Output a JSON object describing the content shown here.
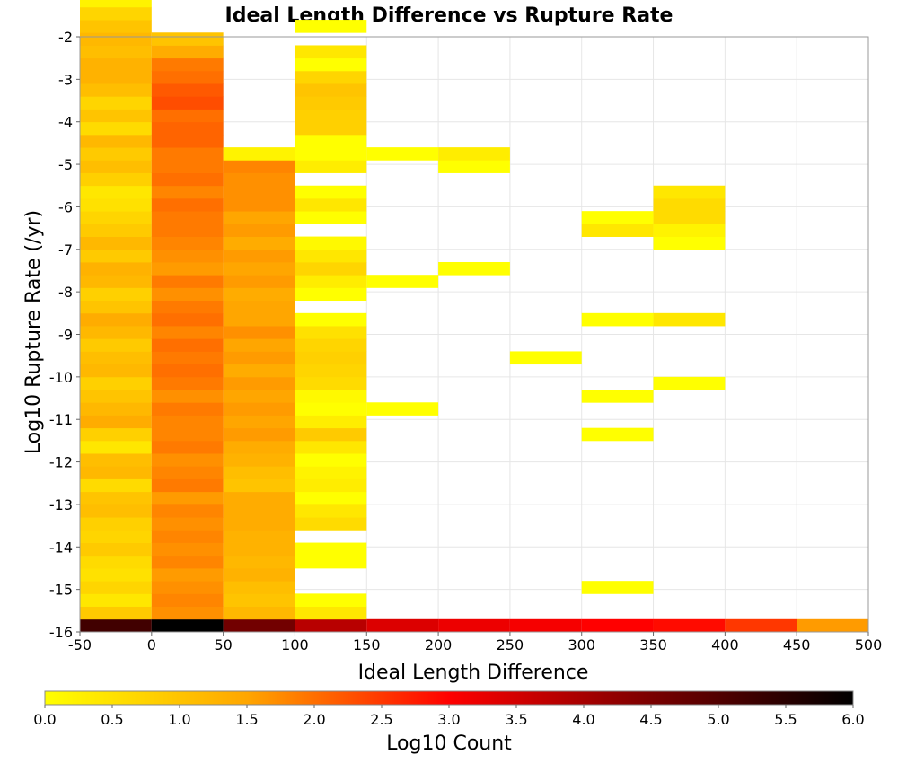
{
  "chart_data": {
    "type": "heatmap",
    "title": "Ideal Length Difference vs Rupture Rate",
    "xlabel": "Ideal Length Difference",
    "ylabel": "Log10 Rupture Rate (/yr)",
    "xlim": [
      -50,
      500
    ],
    "ylim": [
      -16,
      -2
    ],
    "x_ticks": [
      "-50",
      "0",
      "50",
      "100",
      "150",
      "200",
      "250",
      "300",
      "350",
      "400",
      "450",
      "500"
    ],
    "y_ticks": [
      "-2",
      "-3",
      "-4",
      "-5",
      "-6",
      "-7",
      "-8",
      "-9",
      "-10",
      "-11",
      "-12",
      "-13",
      "-14",
      "-15",
      "-16"
    ],
    "x_bin_width": 50,
    "y_bin_height": 0.3,
    "grid": true,
    "colorbar": {
      "label": "Log10 Count",
      "min": 0,
      "max": 6,
      "ticks": [
        "0.0",
        "0.5",
        "1.0",
        "1.5",
        "2.0",
        "2.5",
        "3.0",
        "3.5",
        "4.0",
        "4.5",
        "5.0",
        "5.5",
        "6.0"
      ],
      "colors": [
        "#ffff00",
        "#ffa600",
        "#ff0000",
        "#7a0000",
        "#000000"
      ]
    },
    "columns": [
      {
        "x0": -50,
        "y_start": -16.0,
        "values": [
          5.2,
          0.9,
          0.4,
          0.7,
          0.5,
          0.6,
          0.9,
          0.7,
          0.8,
          1.1,
          1.0,
          0.6,
          1.2,
          1.1,
          0.4,
          0.8,
          1.4,
          1.2,
          1.0,
          0.8,
          1.2,
          1.1,
          0.9,
          1.2,
          1.4,
          1.0,
          0.8,
          1.2,
          1.3,
          0.9,
          1.2,
          0.9,
          0.7,
          0.5,
          0.4,
          0.8,
          1.1,
          0.9,
          1.2,
          0.6,
          1.0,
          0.7,
          1.1,
          1.3,
          1.3,
          1.1,
          1.2,
          1.0,
          0.7,
          0.2,
          0.0
        ]
      },
      {
        "x0": 0,
        "y_start": -16.0,
        "values": [
          6.0,
          1.7,
          1.8,
          1.7,
          1.6,
          1.8,
          1.7,
          1.8,
          1.7,
          1.8,
          1.6,
          1.9,
          1.8,
          1.7,
          1.9,
          1.8,
          1.8,
          1.9,
          1.7,
          1.9,
          2.0,
          1.9,
          2.0,
          1.8,
          2.0,
          1.9,
          1.7,
          1.9,
          1.6,
          1.7,
          1.8,
          1.9,
          1.9,
          2.0,
          1.8,
          2.0,
          1.9,
          1.9,
          2.1,
          2.1,
          2.0,
          2.3,
          2.2,
          2.0,
          1.9,
          1.4,
          1.0
        ]
      },
      {
        "x0": 50,
        "y_start": -16.0,
        "values": [
          4.6,
          1.2,
          1.0,
          1.1,
          1.3,
          1.2,
          1.3,
          1.3,
          1.4,
          1.4,
          1.4,
          1.0,
          1.1,
          1.3,
          1.4,
          1.6,
          1.5,
          1.6,
          1.5,
          1.6,
          1.4,
          1.6,
          1.5,
          1.7,
          1.5,
          1.5,
          1.4,
          1.6,
          1.5,
          1.6,
          1.4,
          1.6,
          1.5,
          1.7,
          1.7,
          1.7,
          1.8,
          0.2
        ]
      },
      {
        "x0": 100,
        "y_start": -16.0,
        "values": [
          3.8,
          0.4,
          0.0,
          null,
          null,
          0.0,
          0.0,
          null,
          0.6,
          0.4,
          0.0,
          0.3,
          0.2,
          0.0,
          0.4,
          0.9,
          0.3,
          0.0,
          0.1,
          0.6,
          0.7,
          0.8,
          0.7,
          0.5,
          0.0,
          null,
          0.0,
          0.3,
          0.7,
          0.4,
          0.1,
          null,
          0.0,
          0.4,
          0.0,
          null,
          0.3,
          0.0,
          0.0,
          0.8,
          0.8,
          0.9,
          1.0,
          0.7,
          0.0,
          0.4,
          null,
          0.0
        ]
      },
      {
        "x0": 150,
        "y_start": -16.0,
        "values": [
          3.4,
          null,
          null,
          null,
          null,
          null,
          null,
          null,
          null,
          null,
          null,
          null,
          null,
          null,
          null,
          null,
          null,
          0.0,
          null,
          null,
          null,
          null,
          null,
          null,
          null,
          null,
          null,
          0.0,
          null,
          null,
          null,
          null,
          null,
          null,
          null,
          null,
          null,
          0.0
        ]
      },
      {
        "x0": 200,
        "y_start": -16.0,
        "values": [
          3.2,
          null,
          null,
          null,
          null,
          null,
          null,
          null,
          null,
          null,
          null,
          null,
          null,
          null,
          null,
          null,
          null,
          null,
          null,
          null,
          null,
          null,
          null,
          null,
          null,
          null,
          null,
          null,
          0.0,
          null,
          null,
          null,
          null,
          null,
          null,
          null,
          0.0,
          0.3
        ]
      },
      {
        "x0": 250,
        "y_start": -16.0,
        "values": [
          3.1,
          null,
          null,
          null,
          null,
          null,
          null,
          null,
          null,
          null,
          null,
          null,
          null,
          null,
          null,
          null,
          null,
          null,
          null,
          null,
          null,
          0.0
        ]
      },
      {
        "x0": 300,
        "y_start": -16.0,
        "values": [
          3.0,
          null,
          null,
          0.0,
          null,
          null,
          null,
          null,
          null,
          null,
          null,
          null,
          null,
          null,
          null,
          0.0,
          null,
          null,
          0.0,
          null,
          null,
          null,
          null,
          null,
          0.0,
          null,
          null,
          null,
          null,
          null,
          null,
          0.4,
          0.0
        ]
      },
      {
        "x0": 350,
        "y_start": -16.0,
        "values": [
          2.9,
          null,
          null,
          null,
          null,
          null,
          null,
          null,
          null,
          null,
          null,
          null,
          null,
          null,
          null,
          null,
          null,
          null,
          null,
          0.0,
          null,
          null,
          null,
          null,
          0.4,
          null,
          null,
          null,
          null,
          null,
          0.0,
          0.2,
          0.6,
          0.6,
          0.4
        ]
      },
      {
        "x0": 400,
        "y_start": -16.0,
        "values": [
          2.5
        ]
      },
      {
        "x0": 450,
        "y_start": -16.0,
        "values": [
          1.6
        ]
      }
    ]
  }
}
